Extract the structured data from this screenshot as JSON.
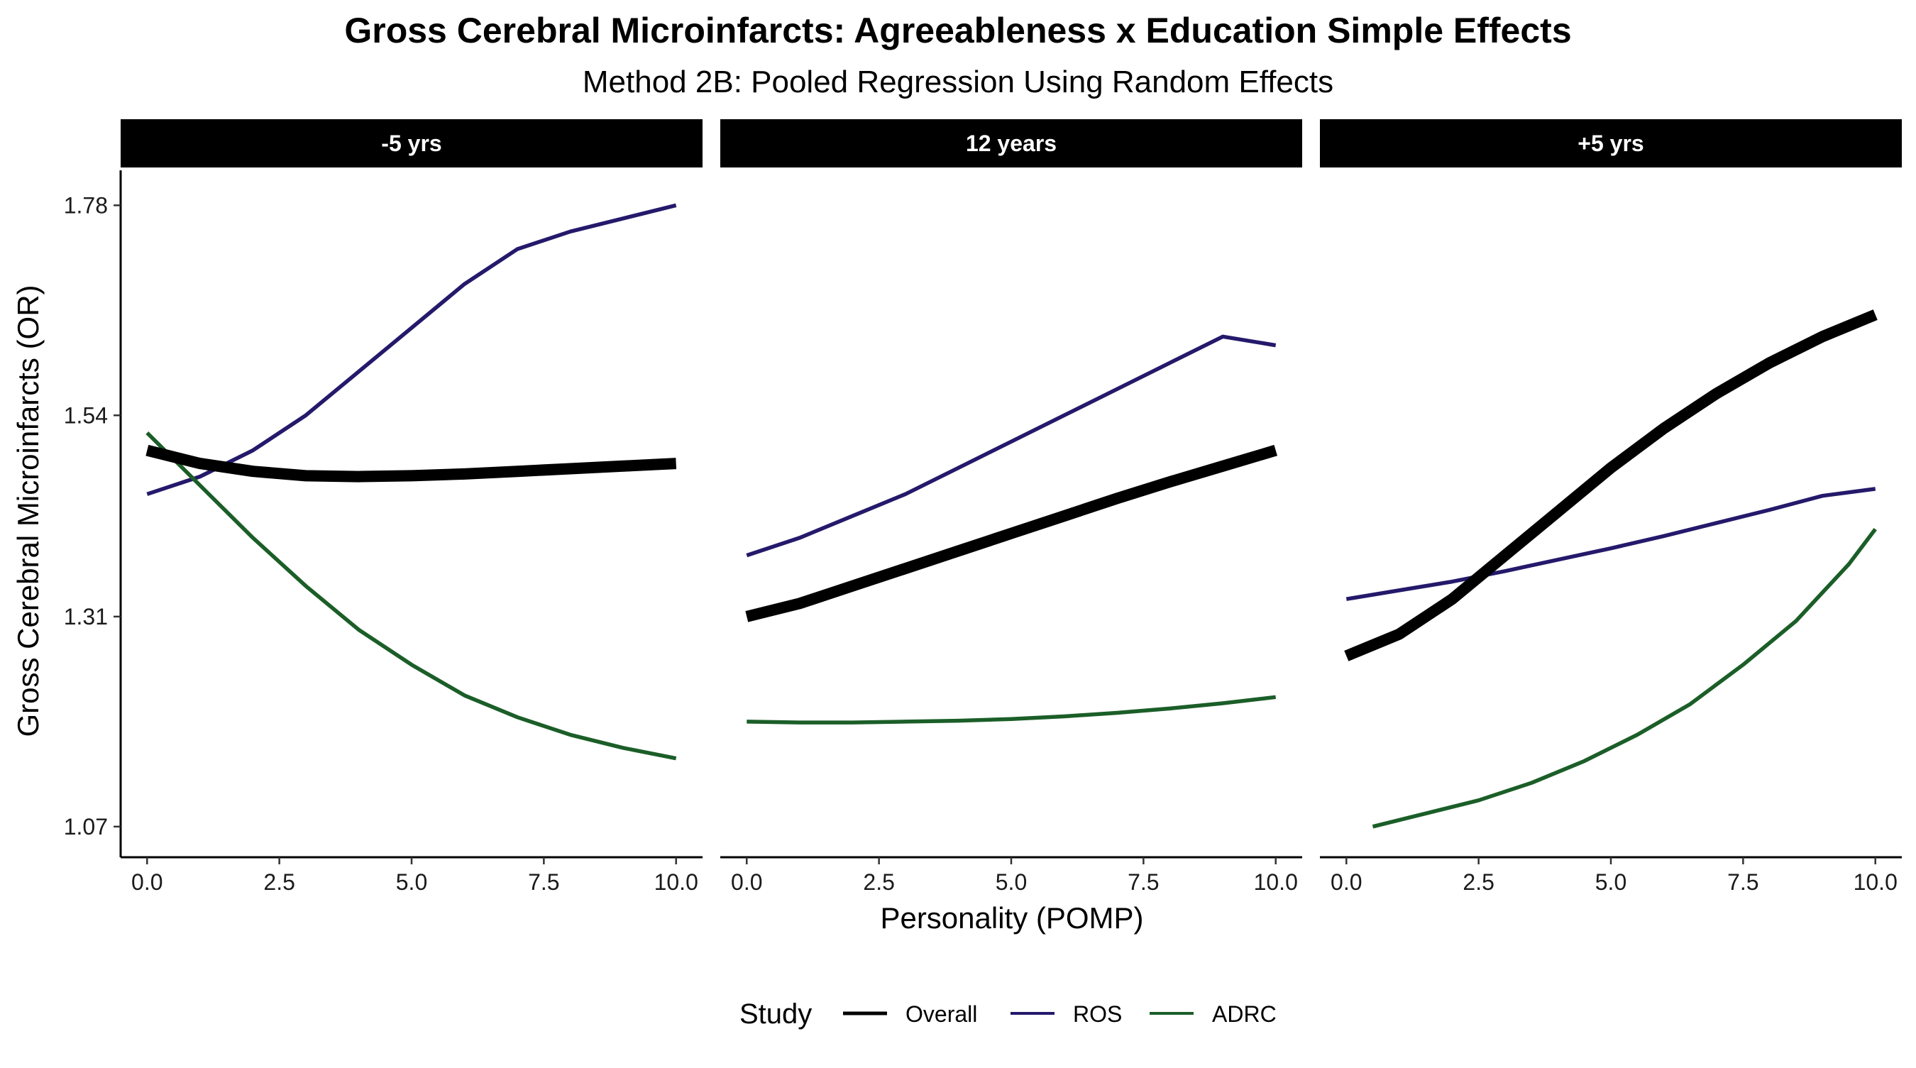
{
  "chart_data": {
    "type": "line",
    "title": "Gross Cerebral Microinfarcts: Agreeableness x Education Simple Effects",
    "subtitle": "Method 2B: Pooled Regression Using Random Effects",
    "xlabel": "Personality (POMP)",
    "ylabel": "Gross Cerebral Microinfarcts (OR)",
    "xlim": [
      -0.5,
      10.5
    ],
    "ylim": [
      1.035,
      1.82
    ],
    "x_ticks": [
      0,
      2.5,
      5,
      7.5,
      10
    ],
    "x_tick_labels": [
      "0.0",
      "2.5",
      "5.0",
      "7.5",
      "10.0"
    ],
    "y_ticks": [
      1.07,
      1.31,
      1.54,
      1.78
    ],
    "y_tick_labels": [
      "1.07",
      "1.31",
      "1.54",
      "1.78"
    ],
    "legend": {
      "title": "Study",
      "position": "bottom",
      "entries": [
        {
          "name": "Overall",
          "color": "#000000"
        },
        {
          "name": "ROS",
          "color": "#24196b"
        },
        {
          "name": "ADRC",
          "color": "#1b5e28"
        }
      ]
    },
    "series_styles": {
      "Overall": {
        "color": "#000000",
        "weight": "thick"
      },
      "ROS": {
        "color": "#24196b",
        "weight": "thin"
      },
      "ADRC": {
        "color": "#1b5e28",
        "weight": "thin"
      }
    },
    "panels": [
      {
        "label": "-5 yrs",
        "series": [
          {
            "name": "Overall",
            "x": [
              0,
              1,
              2,
              3,
              4,
              5,
              6,
              7,
              8,
              9,
              10
            ],
            "y": [
              1.5,
              1.485,
              1.476,
              1.471,
              1.47,
              1.471,
              1.473,
              1.476,
              1.479,
              1.482,
              1.485
            ]
          },
          {
            "name": "ROS",
            "x": [
              0,
              1,
              2,
              3,
              4,
              5,
              6,
              7,
              8,
              9,
              10
            ],
            "y": [
              1.45,
              1.47,
              1.5,
              1.54,
              1.59,
              1.64,
              1.69,
              1.73,
              1.75,
              1.765,
              1.78
            ]
          },
          {
            "name": "ADRC",
            "x": [
              0,
              1,
              2,
              3,
              4,
              5,
              6,
              7,
              8,
              9,
              10
            ],
            "y": [
              1.52,
              1.46,
              1.4,
              1.345,
              1.295,
              1.255,
              1.22,
              1.195,
              1.175,
              1.16,
              1.148
            ]
          }
        ]
      },
      {
        "label": "12 years",
        "series": [
          {
            "name": "Overall",
            "x": [
              0,
              1,
              2,
              3,
              4,
              5,
              6,
              7,
              8,
              9,
              10
            ],
            "y": [
              1.31,
              1.325,
              1.345,
              1.365,
              1.385,
              1.405,
              1.425,
              1.445,
              1.464,
              1.482,
              1.5
            ]
          },
          {
            "name": "ROS",
            "x": [
              0,
              1,
              2,
              3,
              4,
              5,
              6,
              7,
              8,
              9,
              10
            ],
            "y": [
              1.38,
              1.4,
              1.425,
              1.45,
              1.48,
              1.51,
              1.54,
              1.57,
              1.6,
              1.63,
              1.62
            ]
          },
          {
            "name": "ADRC",
            "x": [
              0,
              1,
              2,
              3,
              4,
              5,
              6,
              7,
              8,
              9,
              10
            ],
            "y": [
              1.19,
              1.189,
              1.189,
              1.19,
              1.191,
              1.193,
              1.196,
              1.2,
              1.205,
              1.211,
              1.218
            ]
          }
        ]
      },
      {
        "label": "+5 yrs",
        "series": [
          {
            "name": "Overall",
            "x": [
              0,
              1,
              2,
              3,
              4,
              5,
              6,
              7,
              8,
              9,
              10
            ],
            "y": [
              1.265,
              1.29,
              1.33,
              1.38,
              1.43,
              1.48,
              1.525,
              1.565,
              1.6,
              1.63,
              1.655
            ]
          },
          {
            "name": "ROS",
            "x": [
              0,
              1,
              2,
              3,
              4,
              5,
              6,
              7,
              8,
              9,
              10
            ],
            "y": [
              1.33,
              1.34,
              1.35,
              1.362,
              1.375,
              1.388,
              1.402,
              1.417,
              1.432,
              1.448,
              1.456
            ]
          },
          {
            "name": "ADRC",
            "x": [
              0.5,
              1.5,
              2.5,
              3.5,
              4.5,
              5.5,
              6.5,
              7.5,
              8.5,
              9.5,
              10
            ],
            "y": [
              1.07,
              1.085,
              1.1,
              1.12,
              1.145,
              1.175,
              1.21,
              1.255,
              1.305,
              1.37,
              1.41
            ]
          }
        ]
      }
    ]
  }
}
